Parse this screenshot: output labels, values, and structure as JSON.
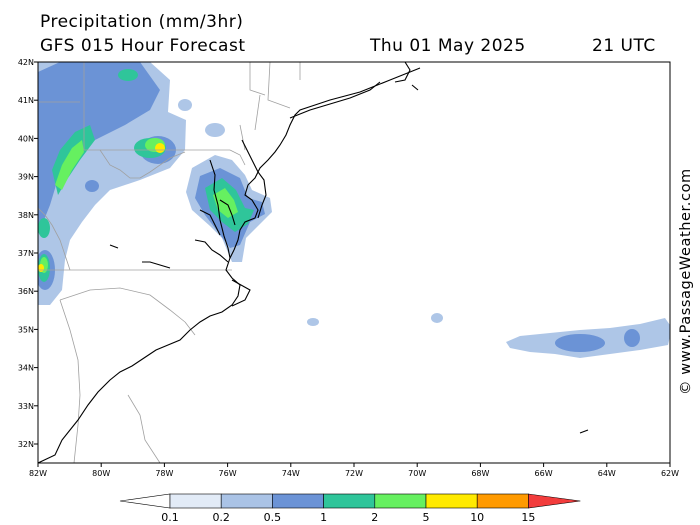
{
  "header": {
    "title": "Precipitation (mm/3hr)",
    "model": "GFS 015 Hour Forecast",
    "date": "Thu 01 May 2025",
    "time": "21 UTC"
  },
  "watermark": "© www.PassageWeather.com",
  "axes": {
    "lat_labels": [
      "42N",
      "41N",
      "40N",
      "39N",
      "38N",
      "37N",
      "36N",
      "35N",
      "34N",
      "33N",
      "32N"
    ],
    "lon_labels": [
      "82W",
      "80W",
      "78W",
      "76W",
      "74W",
      "72W",
      "70W",
      "68W",
      "66W",
      "64W",
      "62W"
    ]
  },
  "legend": {
    "values": [
      "0.1",
      "0.2",
      "0.5",
      "1",
      "2",
      "5",
      "10",
      "15"
    ],
    "colors": [
      "#ffffff",
      "#e2ebf7",
      "#aac3e6",
      "#6b93d6",
      "#2fc59a",
      "#66f060",
      "#ffea00",
      "#ff9a00",
      "#f23c3c"
    ]
  },
  "colors": {
    "land": "#ffffff",
    "coast": "#000000",
    "border": "#a0a0a0"
  }
}
